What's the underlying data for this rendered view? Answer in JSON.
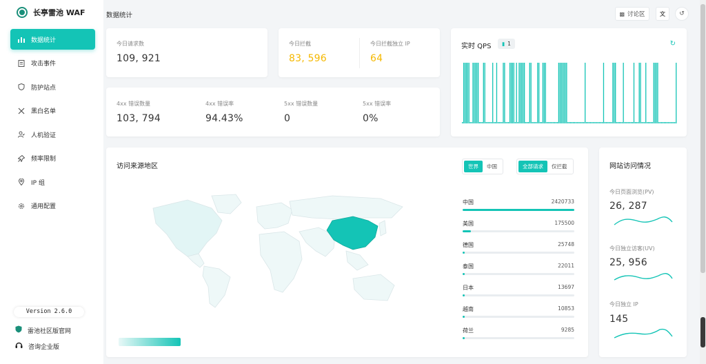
{
  "app": {
    "name": "长亭雷池 WAF",
    "page_title": "数据统计"
  },
  "sidebar": {
    "items": [
      {
        "label": "数据统计",
        "icon": "bar-chart-icon",
        "active": true
      },
      {
        "label": "攻击事件",
        "icon": "document-icon"
      },
      {
        "label": "防护站点",
        "icon": "shield-icon"
      },
      {
        "label": "黑白名单",
        "icon": "tools-icon"
      },
      {
        "label": "人机验证",
        "icon": "user-check-icon"
      },
      {
        "label": "频率限制",
        "icon": "pin-icon"
      },
      {
        "label": "IP 组",
        "icon": "location-icon"
      },
      {
        "label": "通用配置",
        "icon": "gear-icon"
      }
    ],
    "version": "Version 2.6.0",
    "community_link": "雷池社区版官网",
    "enterprise_link": "咨询企业版"
  },
  "topbar": {
    "discuss": "讨论区"
  },
  "stats": {
    "today_requests": {
      "label": "今日请求数",
      "value": "109, 921"
    },
    "today_blocked": {
      "label": "今日拦截",
      "value": "83, 596"
    },
    "today_blocked_ip": {
      "label": "今日拦截独立 IP",
      "value": "64"
    },
    "err4xx_count": {
      "label": "4xx 错误数量",
      "value": "103, 794"
    },
    "err4xx_rate": {
      "label": "4xx 错误率",
      "value": "94.43%"
    },
    "err5xx_count": {
      "label": "5xx 错误数量",
      "value": "0"
    },
    "err5xx_rate": {
      "label": "5xx 错误率",
      "value": "0%"
    }
  },
  "qps": {
    "title": "实时 QPS",
    "badge": "1"
  },
  "geo": {
    "title": "访问来源地区",
    "scope_tabs": [
      "世界",
      "中国"
    ],
    "filter_tabs": [
      "全部请求",
      "仅拦截"
    ],
    "ranking": [
      {
        "name": "中国",
        "value": "2420733",
        "ratio": 1.0
      },
      {
        "name": "美国",
        "value": "175500",
        "ratio": 0.072
      },
      {
        "name": "德国",
        "value": "25748",
        "ratio": 0.011
      },
      {
        "name": "泰国",
        "value": "22011",
        "ratio": 0.009
      },
      {
        "name": "日本",
        "value": "13697",
        "ratio": 0.006
      },
      {
        "name": "越南",
        "value": "10853",
        "ratio": 0.0045
      },
      {
        "name": "荷兰",
        "value": "9285",
        "ratio": 0.004
      }
    ]
  },
  "site_visits": {
    "title": "网站访问情况",
    "pv": {
      "label": "今日页面浏览(PV)",
      "value": "26, 287"
    },
    "uv": {
      "label": "今日独立访客(UV)",
      "value": "25, 956"
    },
    "ip": {
      "label": "今日独立 IP",
      "value": "145"
    }
  },
  "colors": {
    "accent": "#14c4b6",
    "warning": "#f5b800"
  },
  "chart_data": {
    "type": "bar",
    "title": "实时 QPS",
    "values": [
      0,
      1,
      1,
      1,
      1,
      1,
      0,
      0,
      1,
      1,
      1,
      1,
      1,
      0,
      0,
      0,
      1,
      1,
      0,
      0,
      0,
      0,
      0,
      1,
      0,
      0,
      1,
      0,
      0,
      0,
      0,
      1,
      1,
      0,
      0,
      0,
      1,
      1,
      1,
      1,
      0,
      1,
      0,
      1,
      1,
      1,
      1,
      1,
      0,
      0,
      0,
      1,
      1,
      0,
      0,
      0,
      0,
      1,
      1,
      0,
      0,
      1,
      1,
      1,
      0,
      0,
      0,
      0,
      0,
      0,
      0,
      0,
      0,
      1,
      1,
      1,
      1,
      1,
      1,
      1,
      0,
      0,
      0,
      0,
      0,
      0,
      0,
      0,
      0,
      0,
      0,
      0,
      0,
      1,
      0,
      0,
      0,
      0,
      0,
      0,
      0,
      0,
      0,
      0,
      0,
      0,
      0,
      1,
      0,
      0,
      0,
      0,
      0,
      0,
      1,
      1,
      1,
      0,
      0,
      0,
      0,
      0,
      1,
      0,
      0,
      0,
      0,
      0,
      0,
      0,
      1,
      0,
      0,
      0,
      1,
      1,
      0,
      0,
      0,
      1,
      0,
      0,
      0,
      0,
      0,
      1,
      1,
      1,
      1,
      0,
      0,
      0,
      0,
      0,
      0,
      0,
      0,
      0,
      0,
      0,
      0,
      0,
      1
    ]
  }
}
